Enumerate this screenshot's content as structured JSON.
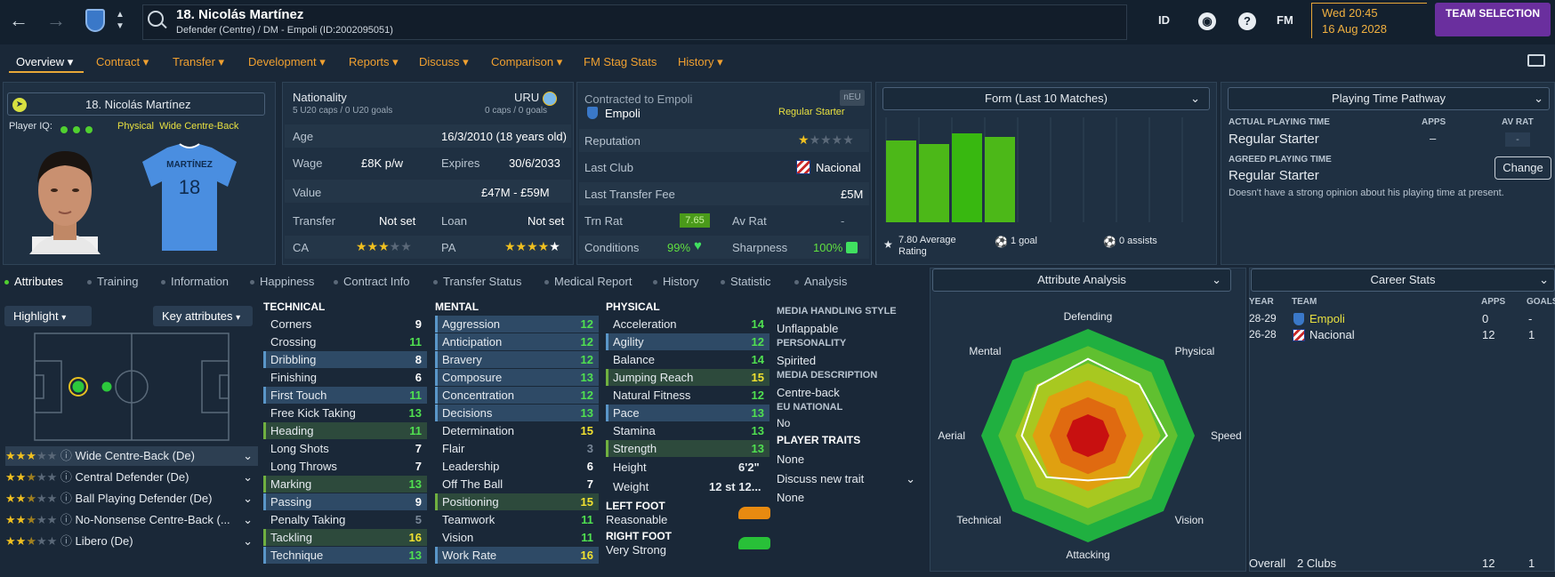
{
  "header": {
    "player_title": "18. Nicolás Martínez",
    "player_subtitle": "Defender (Centre) / DM - Empoli (ID:2002095051)",
    "id_label": "ID",
    "fm_label": "FM",
    "help_label": "?",
    "date_time": "Wed 20:45",
    "date": "16 Aug 2028",
    "team_selection_label": "TEAM SELECTION"
  },
  "tabs": [
    {
      "label": "Overview",
      "active": true
    },
    {
      "label": "Contract"
    },
    {
      "label": "Transfer"
    },
    {
      "label": "Development"
    },
    {
      "label": "Reports"
    },
    {
      "label": "Discuss"
    },
    {
      "label": "Comparison"
    },
    {
      "label": "FM Stag Stats"
    },
    {
      "label": "History"
    }
  ],
  "profile": {
    "name": "18. Nicolás Martínez",
    "iq_label": "Player IQ:",
    "role_line": "Physical  Wide Centre-Back",
    "shirt_name": "MARTÍNEZ",
    "shirt_number": "18"
  },
  "info": {
    "nationality_label": "Nationality",
    "nationality_value": "URU",
    "caps_left": "5 U20 caps / 0 U20 goals",
    "caps_right": "0 caps / 0 goals",
    "age_label": "Age",
    "age_value": "16/3/2010 (18 years old)",
    "wage_label": "Wage",
    "wage_value": "£8K p/w",
    "expires_label": "Expires",
    "expires_value": "30/6/2033",
    "value_label": "Value",
    "value_value": "£47M - £59M",
    "transfer_label": "Transfer",
    "transfer_value": "Not set",
    "loan_label": "Loan",
    "loan_value": "Not set",
    "ca_label": "CA",
    "ca_stars": 3,
    "pa_label": "PA",
    "pa_stars": 4.5
  },
  "contract": {
    "contracted_label": "Contracted to Empoli",
    "club": "Empoli",
    "status": "Regular Starter",
    "neu_badge": "nEU",
    "reputation_label": "Reputation",
    "reputation_stars": 1,
    "last_club_label": "Last Club",
    "last_club_value": "Nacional",
    "last_fee_label": "Last Transfer Fee",
    "last_fee_value": "£5M",
    "trn_rat_label": "Trn Rat",
    "trn_rat_value": "7.65",
    "av_rat_label": "Av Rat",
    "av_rat_value": "-",
    "conditions_label": "Conditions",
    "conditions_value": "99%",
    "sharpness_label": "Sharpness",
    "sharpness_value": "100%"
  },
  "form": {
    "title": "Form (Last 10 Matches)",
    "average_rating_text": "7.80 Average Rating",
    "goals_text": "1 goal",
    "assists_text": "0 assists",
    "ratings": [
      7.8,
      7.7,
      8.0,
      7.9
    ]
  },
  "pathway": {
    "title": "Playing Time Pathway",
    "actual_label": "ACTUAL PLAYING TIME",
    "apps_label": "APPS",
    "av_rat_label": "AV RAT",
    "actual_value": "Regular Starter",
    "apps_value": "–",
    "av_rat_value": "-",
    "agreed_label": "AGREED PLAYING TIME",
    "agreed_value": "Regular Starter",
    "change_label": "Change",
    "note": "Doesn't have a strong opinion about his playing time at present."
  },
  "subtabs": [
    {
      "label": "Attributes",
      "active": true
    },
    {
      "label": "Training"
    },
    {
      "label": "Information"
    },
    {
      "label": "Happiness"
    },
    {
      "label": "Contract Info"
    },
    {
      "label": "Transfer Status"
    },
    {
      "label": "Medical Report"
    },
    {
      "label": "History"
    },
    {
      "label": "Statistic"
    },
    {
      "label": "Analysis"
    }
  ],
  "pitch": {
    "highlight_label": "Highlight",
    "key_attributes_label": "Key attributes"
  },
  "roles": [
    {
      "label": "Wide Centre-Back (De)",
      "stars": 3
    },
    {
      "label": "Central Defender (De)",
      "stars": 2.5
    },
    {
      "label": "Ball Playing Defender (De)",
      "stars": 2.5
    },
    {
      "label": "No-Nonsense Centre-Back (...",
      "stars": 2.5
    },
    {
      "label": "Libero (De)",
      "stars": 2.5
    }
  ],
  "technical": {
    "title": "TECHNICAL",
    "items": [
      {
        "name": "Corners",
        "value": "9",
        "hl": ""
      },
      {
        "name": "Crossing",
        "value": "11",
        "hl": ""
      },
      {
        "name": "Dribbling",
        "value": "8",
        "hl": "b"
      },
      {
        "name": "Finishing",
        "value": "6",
        "hl": ""
      },
      {
        "name": "First Touch",
        "value": "11",
        "hl": "b"
      },
      {
        "name": "Free Kick Taking",
        "value": "13",
        "hl": ""
      },
      {
        "name": "Heading",
        "value": "11",
        "hl": "g"
      },
      {
        "name": "Long Shots",
        "value": "7",
        "hl": ""
      },
      {
        "name": "Long Throws",
        "value": "7",
        "hl": ""
      },
      {
        "name": "Marking",
        "value": "13",
        "hl": "g"
      },
      {
        "name": "Passing",
        "value": "9",
        "hl": "b"
      },
      {
        "name": "Penalty Taking",
        "value": "5",
        "hl": ""
      },
      {
        "name": "Tackling",
        "value": "16",
        "hl": "g"
      },
      {
        "name": "Technique",
        "value": "13",
        "hl": "b"
      }
    ]
  },
  "mental": {
    "title": "MENTAL",
    "items": [
      {
        "name": "Aggression",
        "value": "12",
        "hl": "b"
      },
      {
        "name": "Anticipation",
        "value": "12",
        "hl": "b"
      },
      {
        "name": "Bravery",
        "value": "12",
        "hl": "b"
      },
      {
        "name": "Composure",
        "value": "13",
        "hl": "b"
      },
      {
        "name": "Concentration",
        "value": "12",
        "hl": "b"
      },
      {
        "name": "Decisions",
        "value": "13",
        "hl": "b"
      },
      {
        "name": "Determination",
        "value": "15",
        "hl": ""
      },
      {
        "name": "Flair",
        "value": "3",
        "hl": ""
      },
      {
        "name": "Leadership",
        "value": "6",
        "hl": ""
      },
      {
        "name": "Off The Ball",
        "value": "7",
        "hl": ""
      },
      {
        "name": "Positioning",
        "value": "15",
        "hl": "g"
      },
      {
        "name": "Teamwork",
        "value": "11",
        "hl": ""
      },
      {
        "name": "Vision",
        "value": "11",
        "hl": ""
      },
      {
        "name": "Work Rate",
        "value": "16",
        "hl": "b"
      }
    ]
  },
  "physical": {
    "title": "PHYSICAL",
    "items": [
      {
        "name": "Acceleration",
        "value": "14",
        "hl": ""
      },
      {
        "name": "Agility",
        "value": "12",
        "hl": "b"
      },
      {
        "name": "Balance",
        "value": "14",
        "hl": ""
      },
      {
        "name": "Jumping Reach",
        "value": "15",
        "hl": "g"
      },
      {
        "name": "Natural Fitness",
        "value": "12",
        "hl": ""
      },
      {
        "name": "Pace",
        "value": "13",
        "hl": "b"
      },
      {
        "name": "Stamina",
        "value": "13",
        "hl": ""
      },
      {
        "name": "Strength",
        "value": "13",
        "hl": "g"
      }
    ],
    "height_label": "Height",
    "height_value": "6'2\"",
    "weight_label": "Weight",
    "weight_value": "12 st 12...",
    "left_foot_label": "LEFT FOOT",
    "left_foot_value": "Reasonable",
    "right_foot_label": "RIGHT FOOT",
    "right_foot_value": "Very Strong"
  },
  "media": {
    "handling_label": "MEDIA HANDLING STYLE",
    "handling_value": "Unflappable",
    "personality_label": "PERSONALITY",
    "personality_value": "Spirited",
    "description_label": "MEDIA DESCRIPTION",
    "description_value": "Centre-back",
    "eu_label": "EU NATIONAL",
    "eu_value": "No",
    "traits_label": "PLAYER TRAITS",
    "traits_value": "None",
    "discuss_label": "Discuss new trait",
    "discuss_value": "None"
  },
  "analysis": {
    "title": "Attribute Analysis",
    "axes": [
      "Defending",
      "Physical",
      "Speed",
      "Vision",
      "Attacking",
      "Technical",
      "Aerial",
      "Mental"
    ],
    "values": [
      0.72,
      0.68,
      0.74,
      0.55,
      0.42,
      0.55,
      0.62,
      0.66
    ]
  },
  "career": {
    "title": "Career Stats",
    "col_year": "YEAR",
    "col_team": "TEAM",
    "col_apps": "APPS",
    "col_goals": "GOALS",
    "rows": [
      {
        "year": "28-29",
        "team": "Empoli",
        "apps": "0",
        "goals": "-"
      },
      {
        "year": "26-28",
        "team": "Nacional",
        "apps": "12",
        "goals": "1"
      }
    ],
    "overall_label": "Overall",
    "overall_clubs": "2 Clubs",
    "overall_apps": "12",
    "overall_goals": "1"
  },
  "colors": {
    "accent": "#e8a838",
    "purple": "#6a2f9e",
    "green": "#44b814",
    "blue_hl": "#2e4a66"
  }
}
